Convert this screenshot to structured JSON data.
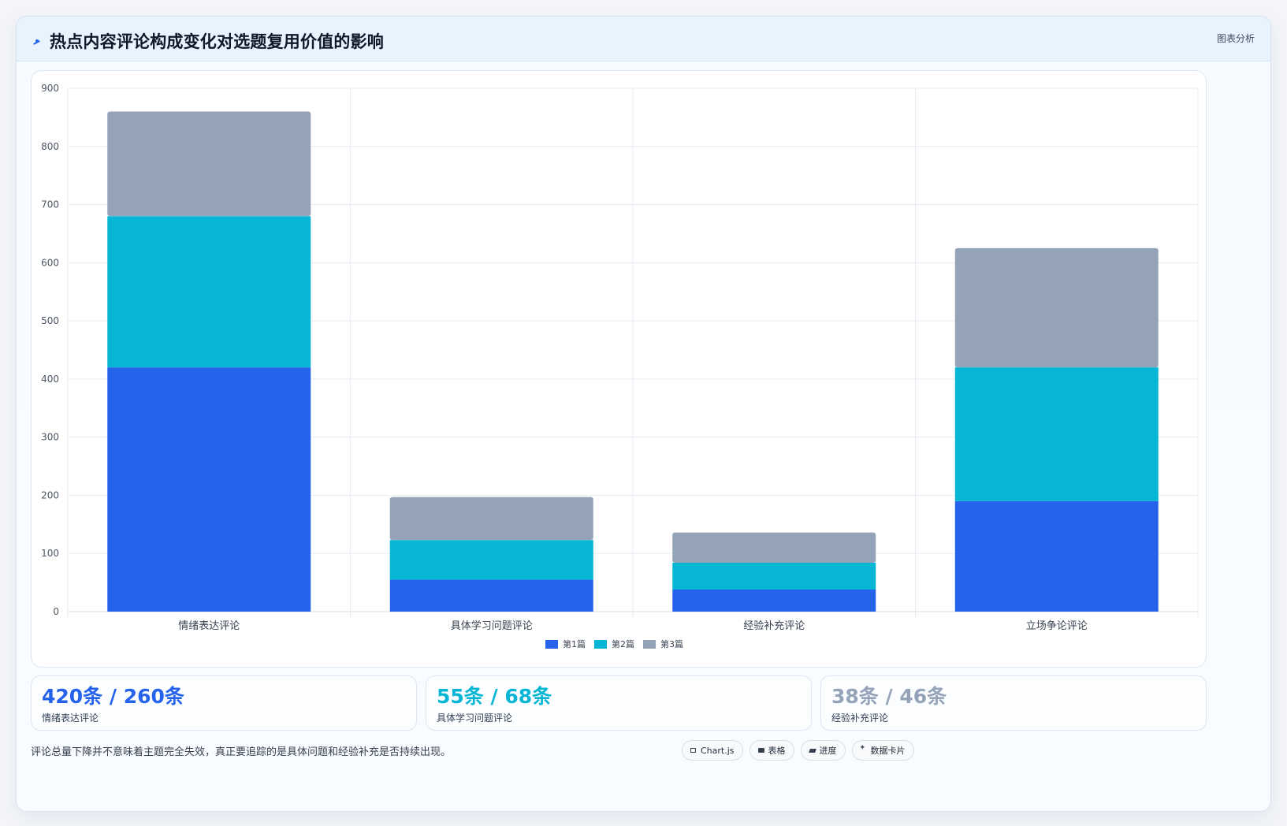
{
  "header": {
    "title": "热点内容评论构成变化对选题复用价值的影响",
    "right_label": "图表分析",
    "icon": "trend-icon"
  },
  "chart_data": {
    "type": "bar",
    "stacked": true,
    "categories": [
      "情绪表达评论",
      "具体学习问题评论",
      "经验补充评论",
      "立场争论评论"
    ],
    "series": [
      {
        "name": "第1篇",
        "color": "#2563eb",
        "values": [
          420,
          55,
          38,
          190
        ]
      },
      {
        "name": "第2篇",
        "color": "#06b6d4",
        "values": [
          260,
          68,
          46,
          230
        ]
      },
      {
        "name": "第3篇",
        "color": "#94a3b8",
        "values": [
          180,
          74,
          52,
          205
        ]
      }
    ],
    "ylim": [
      0,
      900
    ],
    "yticks": [
      0,
      100,
      200,
      300,
      400,
      500,
      600,
      700,
      800,
      900
    ],
    "grid": true,
    "legend": "bottom-center",
    "title": "",
    "xlabel": "",
    "ylabel": ""
  },
  "stats": [
    {
      "value": "420条 / 260条",
      "label": "情绪表达评论",
      "color": "#2563eb"
    },
    {
      "value": "55条 / 68条",
      "label": "具体学习问题评论",
      "color": "#06b6d4"
    },
    {
      "value": "38条 / 46条",
      "label": "经验补充评论",
      "color": "#94a3b8"
    }
  ],
  "footer": {
    "note": "评论总量下降并不意味着主题完全失效，真正要追踪的是具体问题和经验补充是否持续出现。",
    "chips": [
      {
        "label": "Chart.js",
        "icon": "chart-icon"
      },
      {
        "label": "表格",
        "icon": "table-icon"
      },
      {
        "label": "进度",
        "icon": "progress-icon"
      },
      {
        "label": "数据卡片",
        "icon": "sparkle-icon"
      }
    ]
  }
}
